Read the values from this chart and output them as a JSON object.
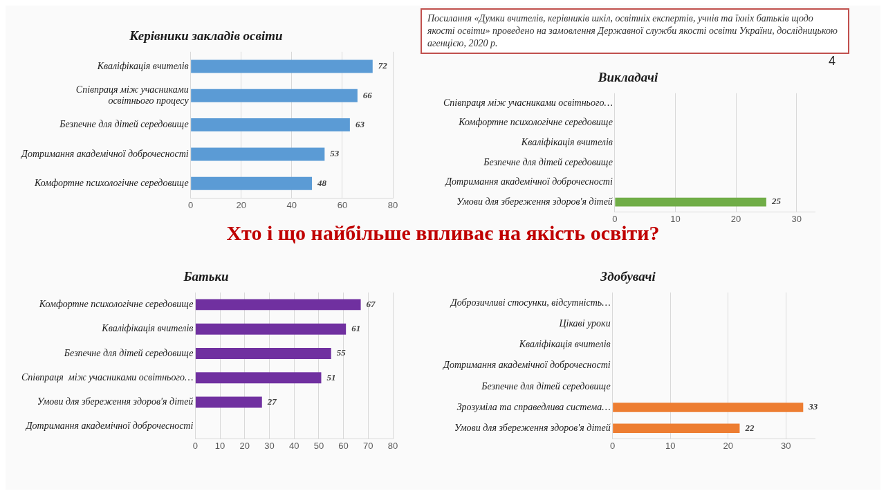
{
  "chart_data": [
    {
      "type": "other",
      "title": "Хто і що найбільше впливає на якість освіти?",
      "annotations": [
        "Посилання «Думки вчителів, керівників шкіл, освітніх експертів, учнів та їхніх батьків щодо якості освіти» проведено на замовлення Державної служби якості освіти України, дослідницькою агенцією, 2020 р.",
        "4"
      ]
    },
    {
      "type": "bar",
      "orientation": "horizontal",
      "title": "Керівники закладів освіти",
      "categories": [
        "Кваліфікація вчителів",
        "Співпраця між учасниками освітнього процесу",
        "Безпечне для дітей середовище",
        "Дотримання академічної доброчесності",
        "Комфортне психологічне середовище"
      ],
      "values": [
        72,
        66,
        63,
        53,
        48
      ],
      "color": "#5b9bd5",
      "xlim": [
        0,
        80
      ],
      "xticks": [
        0,
        20,
        40,
        60,
        80
      ],
      "grid": "x",
      "data_labels": true
    },
    {
      "type": "bar",
      "orientation": "horizontal",
      "title": "Викладачі",
      "categories": [
        "Співпраця між учасниками освітнього…",
        "Комфортне психологічне середовище",
        "Кваліфікація вчителів",
        "Безпечне для дітей середовище",
        "Дотримання академічної доброчесності",
        "Умови для збереження здоров'я дітей"
      ],
      "values": [
        null,
        null,
        null,
        null,
        null,
        25
      ],
      "color": "#70ad47",
      "xlim": [
        0,
        33
      ],
      "xticks": [
        0,
        10,
        20,
        30
      ],
      "grid": "x",
      "data_labels": true
    },
    {
      "type": "bar",
      "orientation": "horizontal",
      "title": "Батьки",
      "categories": [
        "Комфортне психологічне середовище",
        "Кваліфікація вчителів",
        "Безпечне для дітей середовище",
        "Співпраця  між учасниками освітнього…",
        "Умови для збереження здоров'я дітей",
        "Дотримання академічної доброчесності"
      ],
      "values": [
        67,
        61,
        55,
        51,
        27,
        null
      ],
      "color": "#7030a0",
      "xlim": [
        0,
        80
      ],
      "xticks": [
        0,
        10,
        20,
        30,
        40,
        50,
        60,
        70,
        80
      ],
      "grid": "x",
      "data_labels": true
    },
    {
      "type": "bar",
      "orientation": "horizontal",
      "title": "Здобувачі",
      "categories": [
        "Доброзичливі стосунки, відсутність…",
        "Цікаві уроки",
        "Кваліфікація вчителів",
        "Дотримання академічної доброчесності",
        "Безпечне для дітей середовище",
        "Зрозуміла та справедлива система…",
        "Умови для збереження здоров'я дітей"
      ],
      "values": [
        null,
        null,
        null,
        null,
        null,
        33,
        22
      ],
      "color": "#ed7d31",
      "xlim": [
        0,
        35
      ],
      "xticks": [
        0,
        10,
        20,
        30
      ],
      "grid": "x",
      "data_labels": true
    }
  ]
}
